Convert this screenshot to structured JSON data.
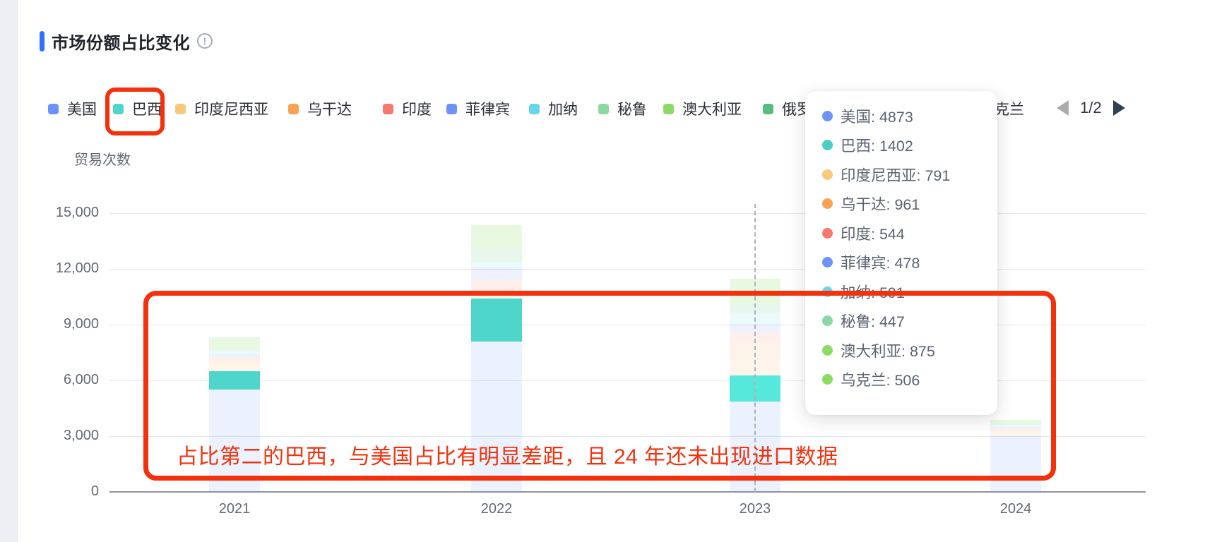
{
  "header": {
    "title": "市场份额占比变化"
  },
  "icons": {
    "info_glyph": "!"
  },
  "legend": {
    "items": [
      {
        "label": "美国",
        "color": "#6E93F8"
      },
      {
        "label": "巴西",
        "color": "#4ED6CB"
      },
      {
        "label": "印度尼西亚",
        "color": "#F8C87D"
      },
      {
        "label": "乌干达",
        "color": "#F9A254"
      },
      {
        "label": "印度",
        "color": "#F8786D"
      },
      {
        "label": "菲律宾",
        "color": "#6E93F8"
      },
      {
        "label": "加纳",
        "color": "#67D6EC"
      },
      {
        "label": "秘鲁",
        "color": "#8BD8A2"
      },
      {
        "label": "澳大利亚",
        "color": "#8DDB67"
      },
      {
        "label": "俄罗斯",
        "color": "#54BE80"
      },
      {
        "label": "乌克兰",
        "color": "#8DDB67"
      }
    ],
    "pagination": {
      "label": "1/2",
      "prev_enabled": false,
      "next_enabled": true
    }
  },
  "chart_data": {
    "type": "bar",
    "stacked": true,
    "title": "市场份额占比变化",
    "ylabel": "贸易次数",
    "categories": [
      "2021",
      "2022",
      "2023",
      "2024"
    ],
    "ylim": [
      0,
      15000
    ],
    "yticks": [
      0,
      3000,
      6000,
      9000,
      12000,
      15000
    ],
    "ytick_labels": [
      "0",
      "3,000",
      "6,000",
      "9,000",
      "12,000",
      "15,000"
    ],
    "grid": true,
    "legend_position": "top",
    "highlighted_series": "巴西",
    "hovered_category": "2023",
    "series": [
      {
        "name": "美国",
        "color": "#6E93F8",
        "fill_opacity": 0.13,
        "values": [
          5500,
          8100,
          4873,
          3050
        ]
      },
      {
        "name": "巴西",
        "color": "#4ED6CB",
        "fill_opacity": 1,
        "hover_color": "#57E8DC",
        "values": [
          1000,
          2300,
          1402,
          0
        ]
      },
      {
        "name": "印度尼西亚",
        "color": "#F8C87D",
        "fill_opacity": 0.16,
        "values": [
          300,
          150,
          791,
          150
        ]
      },
      {
        "name": "乌干达",
        "color": "#F9A254",
        "fill_opacity": 0.13,
        "values": [
          250,
          120,
          961,
          120
        ]
      },
      {
        "name": "印度",
        "color": "#F8786D",
        "fill_opacity": 0.13,
        "values": [
          200,
          750,
          544,
          100
        ]
      },
      {
        "name": "菲律宾",
        "color": "#6E93F8",
        "fill_opacity": 0.12,
        "values": [
          150,
          650,
          478,
          80
        ]
      },
      {
        "name": "加纳",
        "color": "#67D6EC",
        "fill_opacity": 0.13,
        "values": [
          150,
          300,
          591,
          90
        ]
      },
      {
        "name": "秘鲁",
        "color": "#8BD8A2",
        "fill_opacity": 0.2,
        "values": [
          150,
          700,
          447,
          80
        ]
      },
      {
        "name": "澳大利亚",
        "color": "#8DDB67",
        "fill_opacity": 0.2,
        "values": [
          400,
          900,
          875,
          150
        ]
      },
      {
        "name": "乌克兰",
        "color": "#8DDB67",
        "fill_opacity": 0.2,
        "values": [
          200,
          380,
          506,
          60
        ]
      }
    ]
  },
  "tooltip": {
    "items": [
      {
        "label": "美国",
        "value": "4873",
        "color": "#6E93F8"
      },
      {
        "label": "巴西",
        "value": "1402",
        "color": "#49CEC4"
      },
      {
        "label": "印度尼西亚",
        "value": "791",
        "color": "#F8C87D"
      },
      {
        "label": "乌干达",
        "value": "961",
        "color": "#F9A254"
      },
      {
        "label": "印度",
        "value": "544",
        "color": "#F8786D"
      },
      {
        "label": "菲律宾",
        "value": "478",
        "color": "#6E93F8"
      },
      {
        "label": "加纳",
        "value": "591",
        "color": "#67D6EC"
      },
      {
        "label": "秘鲁",
        "value": "447",
        "color": "#8BD8A2"
      },
      {
        "label": "澳大利亚",
        "value": "875",
        "color": "#8DDB67"
      },
      {
        "label": "乌克兰",
        "value": "506",
        "color": "#8DDB67"
      }
    ]
  },
  "annotations": {
    "highlight_text": "占比第二的巴西，与美国占比有明显差距，且 24 年还未出现进口数据",
    "annotation_color": "#F4310D",
    "circled_legend_item": "巴西"
  }
}
